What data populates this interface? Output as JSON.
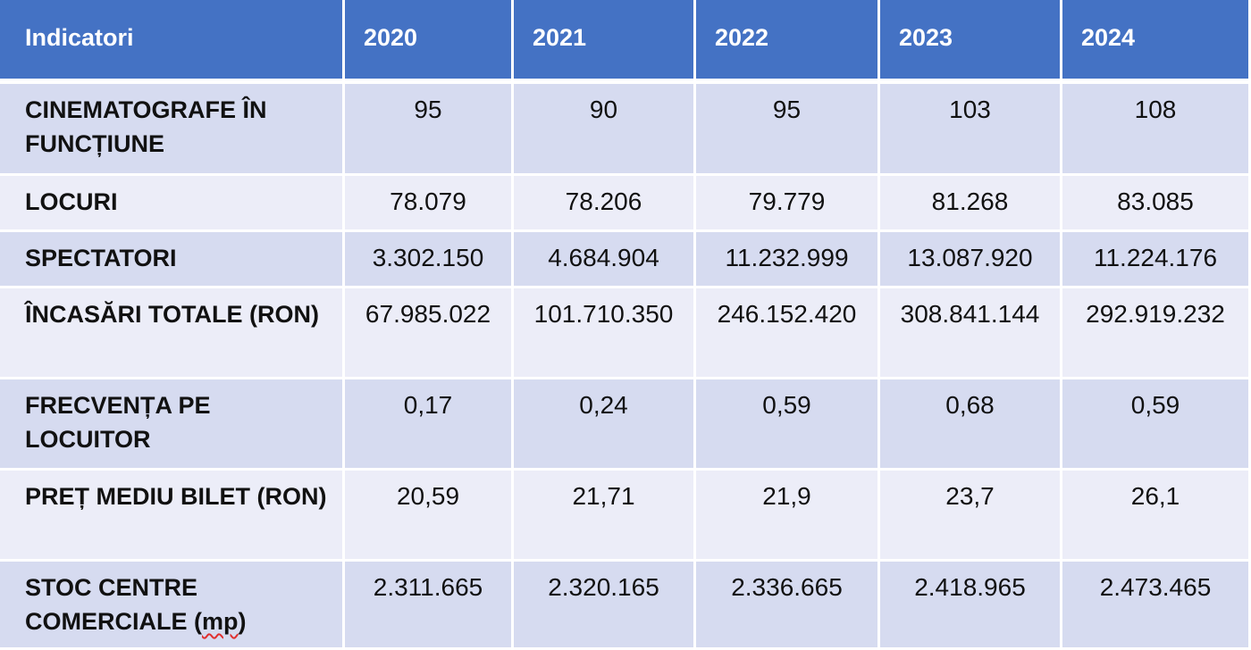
{
  "headers": [
    "Indicatori",
    "2020",
    "2021",
    "2022",
    "2023",
    "2024"
  ],
  "rows": [
    {
      "label": "CINEMATOGRAFE ÎN FUNCȚIUNE",
      "values": [
        "95",
        "90",
        "95",
        "103",
        "108"
      ]
    },
    {
      "label": "LOCURI",
      "values": [
        "78.079",
        "78.206",
        "79.779",
        "81.268",
        "83.085"
      ]
    },
    {
      "label": "SPECTATORI",
      "values": [
        "3.302.150",
        "4.684.904",
        "11.232.999",
        "13.087.920",
        "11.224.176"
      ]
    },
    {
      "label": "ÎNCASĂRI TOTALE (RON)",
      "values": [
        "67.985.022",
        "101.710.350",
        "246.152.420",
        "308.841.144",
        "292.919.232"
      ]
    },
    {
      "label": "FRECVENȚA PE LOCUITOR",
      "values": [
        "0,17",
        "0,24",
        "0,59",
        "0,68",
        "0,59"
      ]
    },
    {
      "label": "PREȚ MEDIU BILET (RON)",
      "values": [
        "20,59",
        "21,71",
        "21,9",
        "23,7",
        "26,1"
      ]
    },
    {
      "label_main": "STOC CENTRE COMERCIALE (",
      "label_unit": "mp",
      "label_end": ")",
      "values": [
        "2.311.665",
        "2.320.165",
        "2.336.665",
        "2.418.965",
        "2.473.465"
      ]
    }
  ],
  "colors": {
    "header_bg": "#4472c4",
    "row_odd_bg": "#d6dbf0",
    "row_even_bg": "#ecedf8",
    "spellcheck_underline": "#e03030"
  }
}
